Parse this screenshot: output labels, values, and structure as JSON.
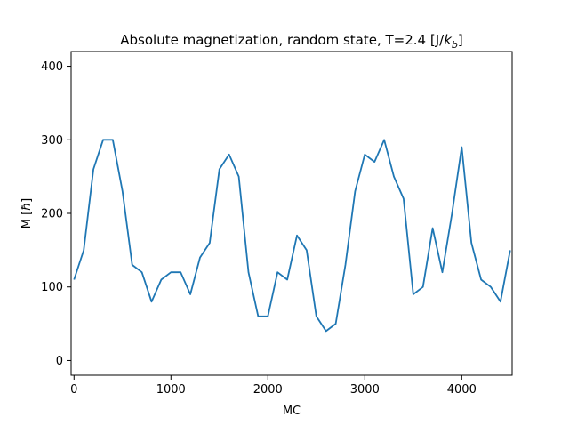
{
  "chart_data": {
    "type": "line",
    "title_main": "Absolute magnetization, random state, T=2.4 [J/",
    "title_k": "k",
    "title_sub": "b",
    "title_end": "]",
    "xlabel": "MC",
    "ylabel_main": "M [",
    "ylabel_sym": "ħ",
    "ylabel_end": "]",
    "xlim": [
      -30,
      4520
    ],
    "ylim": [
      -20,
      420
    ],
    "xticks": [
      0,
      1000,
      2000,
      3000,
      4000
    ],
    "xtick_labels": [
      "0",
      "1000",
      "2000",
      "3000",
      "4000"
    ],
    "yticks": [
      0,
      100,
      200,
      300,
      400
    ],
    "ytick_labels": [
      "0",
      "100",
      "200",
      "300",
      "400"
    ],
    "grid": false,
    "series_color": "#1f77b4",
    "series": [
      {
        "x": [
          0,
          100,
          200,
          300,
          400,
          500,
          600,
          700,
          800,
          900,
          1000,
          1100,
          1200,
          1300,
          1400,
          1500,
          1600,
          1700,
          1800,
          1900,
          2000,
          2100,
          2200,
          2300,
          2400,
          2500,
          2600,
          2700,
          2800,
          2900,
          3000,
          3100,
          3200,
          3300,
          3400,
          3500,
          3600,
          3700,
          3800,
          3900,
          4000,
          4100,
          4200,
          4300,
          4400,
          4500
        ],
        "y": [
          110,
          150,
          260,
          300,
          300,
          230,
          130,
          120,
          80,
          110,
          120,
          120,
          90,
          140,
          160,
          260,
          280,
          250,
          120,
          60,
          60,
          120,
          110,
          170,
          150,
          60,
          40,
          50,
          130,
          230,
          280,
          270,
          300,
          250,
          220,
          90,
          100,
          180,
          120,
          200,
          290,
          160,
          110,
          100,
          80,
          150
        ]
      }
    ]
  }
}
